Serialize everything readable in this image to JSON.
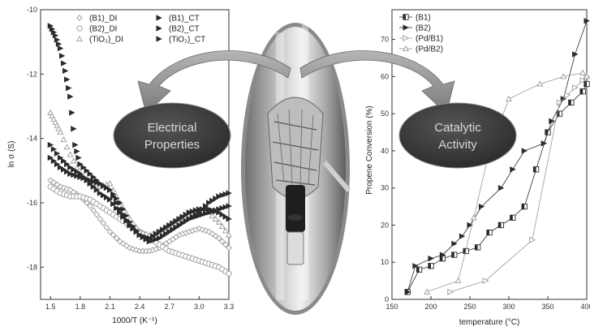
{
  "colors": {
    "series_dark": "#2b2b2b",
    "series_light": "#9a9a9a",
    "oval_fill": "#3a3a3a",
    "oval_text": "#d8d8d8",
    "arrow": "#8e8e8e"
  },
  "overlays": {
    "left_bubble": [
      "Electrical",
      "Properties"
    ],
    "right_bubble": [
      "Catalytic",
      "Activity"
    ],
    "photo": "reactor-tube-photo"
  },
  "chart_data": [
    {
      "type": "scatter",
      "title": "",
      "xlabel": "1000/T (K⁻¹)",
      "ylabel": "ln σ (S)",
      "xlim": [
        1.4,
        3.3
      ],
      "ylim": [
        -19,
        -10
      ],
      "xticks": [
        "1.5",
        "1.8",
        "2.1",
        "2.4",
        "2.7",
        "3.0",
        "3.3"
      ],
      "yticks": [
        "-10",
        "-12",
        "-14",
        "-16",
        "-18"
      ],
      "legend_position": "top",
      "series": [
        {
          "name": "(B1)_DI",
          "marker": "diamond-open",
          "x": [
            1.5,
            1.6,
            1.7,
            1.8,
            1.9,
            2.0,
            2.1,
            2.2,
            2.3,
            2.4,
            2.5,
            2.6,
            2.7,
            2.8,
            2.9,
            3.0,
            3.1,
            3.2,
            3.3
          ],
          "y": [
            -15.3,
            -15.5,
            -15.6,
            -15.8,
            -16.1,
            -16.5,
            -16.9,
            -17.2,
            -17.4,
            -17.5,
            -17.5,
            -17.4,
            -17.2,
            -17.0,
            -16.9,
            -16.8,
            -16.9,
            -17.1,
            -17.4
          ]
        },
        {
          "name": "(B2)_DI",
          "marker": "circle-open",
          "x": [
            1.5,
            1.6,
            1.7,
            1.8,
            1.9,
            2.0,
            2.1,
            2.2,
            2.3,
            2.4,
            2.5,
            2.6,
            2.7,
            2.8,
            2.9,
            3.0,
            3.1,
            3.2,
            3.3
          ],
          "y": [
            -15.5,
            -15.7,
            -15.8,
            -15.8,
            -15.9,
            -16.1,
            -16.3,
            -16.5,
            -16.7,
            -16.9,
            -17.1,
            -17.3,
            -17.5,
            -17.6,
            -17.7,
            -17.8,
            -17.9,
            -18.0,
            -18.2
          ]
        },
        {
          "name": "(TiO₂)_DI",
          "marker": "triangle-open",
          "x": [
            1.5,
            1.55,
            1.6,
            1.7,
            1.8,
            1.9,
            2.0,
            2.1,
            2.2,
            2.3,
            2.4,
            2.5,
            2.6,
            2.7,
            2.8,
            2.9,
            3.0,
            3.1,
            3.2,
            3.3
          ],
          "y": [
            -13.2,
            -13.5,
            -13.8,
            -14.5,
            -15.1,
            -15.4,
            -15.5,
            -15.4,
            -16.0,
            -16.5,
            -16.9,
            -17.0,
            -16.9,
            -16.7,
            -16.5,
            -16.4,
            -16.3,
            -16.3,
            -16.6,
            -17.0
          ]
        },
        {
          "name": "(B1)_CT",
          "marker": "triangle-right-filled",
          "x": [
            1.5,
            1.55,
            1.6,
            1.65,
            1.7,
            1.75,
            1.8,
            1.9,
            2.0,
            2.1,
            2.2,
            2.3,
            2.4,
            2.5,
            2.6,
            2.7,
            2.8,
            2.9,
            3.0,
            3.1,
            3.2,
            3.3
          ],
          "y": [
            -10.5,
            -10.8,
            -11.2,
            -11.9,
            -12.7,
            -14.2,
            -14.8,
            -15.1,
            -15.4,
            -15.6,
            -16.0,
            -16.6,
            -17.0,
            -17.2,
            -17.1,
            -16.9,
            -16.7,
            -16.5,
            -16.3,
            -16.0,
            -15.8,
            -15.7
          ]
        },
        {
          "name": "(B2)_CT",
          "marker": "triangle-right-filled",
          "x": [
            1.5,
            1.6,
            1.7,
            1.8,
            1.9,
            2.0,
            2.1,
            2.2,
            2.3,
            2.4,
            2.5,
            2.6,
            2.7,
            2.8,
            2.9,
            3.0,
            3.1,
            3.2,
            3.3
          ],
          "y": [
            -14.2,
            -14.6,
            -14.9,
            -15.1,
            -15.4,
            -15.7,
            -15.9,
            -16.3,
            -16.7,
            -17.0,
            -17.2,
            -17.1,
            -16.9,
            -16.7,
            -16.5,
            -16.4,
            -16.3,
            -16.2,
            -16.1
          ]
        },
        {
          "name": "(TiO₂)_CT",
          "marker": "triangle-right-filled",
          "x": [
            1.5,
            1.6,
            1.7,
            1.8,
            1.9,
            2.0,
            2.1,
            2.2,
            2.3,
            2.4,
            2.5,
            2.6,
            2.7,
            2.8,
            2.9,
            3.0,
            3.1,
            3.2,
            3.3
          ],
          "y": [
            -14.6,
            -14.9,
            -15.1,
            -15.2,
            -15.3,
            -15.4,
            -15.6,
            -16.2,
            -16.7,
            -17.0,
            -17.1,
            -16.9,
            -16.7,
            -16.5,
            -16.3,
            -16.2,
            -16.2,
            -16.3,
            -16.5
          ]
        }
      ]
    },
    {
      "type": "line",
      "title": "",
      "xlabel": "temperature (°C)",
      "ylabel": "Propene Conversion (%)",
      "xlim": [
        150,
        400
      ],
      "ylim": [
        0,
        78
      ],
      "xticks": [
        "150",
        "200",
        "250",
        "300",
        "350",
        "400"
      ],
      "yticks": [
        "0",
        "10",
        "20",
        "30",
        "40",
        "50",
        "60",
        "70"
      ],
      "legend_position": "top-left",
      "series": [
        {
          "name": "(B1)",
          "marker": "square-half",
          "x": [
            170,
            185,
            200,
            215,
            230,
            245,
            260,
            275,
            290,
            305,
            320,
            335,
            350,
            365,
            380,
            395,
            400
          ],
          "y": [
            2,
            8,
            9,
            11,
            12,
            13,
            14,
            18,
            20,
            22,
            25,
            35,
            45,
            50,
            53,
            56,
            58
          ]
        },
        {
          "name": "(B2)",
          "marker": "triangle-right-filled",
          "x": [
            170,
            180,
            200,
            215,
            230,
            240,
            250,
            265,
            290,
            305,
            320,
            345,
            355,
            370,
            385,
            400
          ],
          "y": [
            2,
            9,
            11,
            12,
            15,
            17,
            20,
            25,
            30,
            35,
            40,
            42,
            48,
            54,
            66,
            75
          ]
        },
        {
          "name": "(Pd/B1)",
          "marker": "triangle-right-open",
          "x": [
            225,
            270,
            330,
            365,
            375,
            385,
            395,
            400
          ],
          "y": [
            2,
            5,
            16,
            53,
            55,
            57,
            59,
            60
          ]
        },
        {
          "name": "(Pd/B2)",
          "marker": "triangle-open",
          "x": [
            195,
            235,
            255,
            275,
            300,
            340,
            370,
            395,
            400
          ],
          "y": [
            2,
            5,
            22,
            40,
            54,
            58,
            60,
            61,
            60
          ]
        }
      ]
    }
  ]
}
